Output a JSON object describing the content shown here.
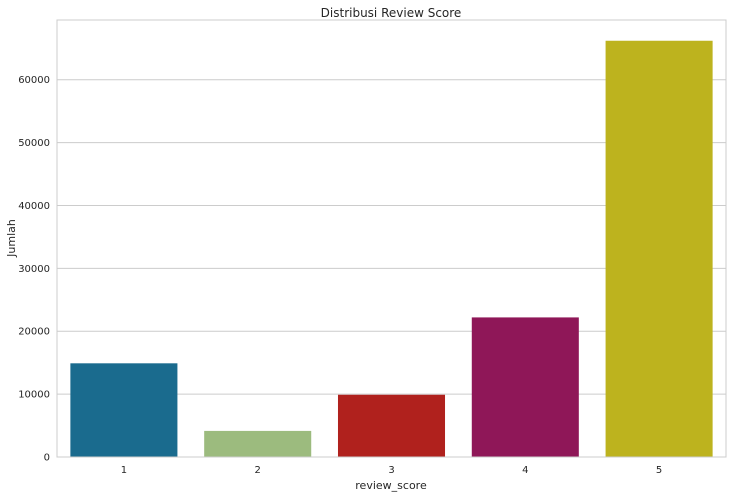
{
  "chart_data": {
    "type": "bar",
    "title": "Distribusi Review Score",
    "xlabel": "review_score",
    "ylabel": "Jumlah",
    "categories": [
      "1",
      "2",
      "3",
      "4",
      "5"
    ],
    "values": [
      14900,
      4150,
      9900,
      22200,
      66200
    ],
    "colors": [
      "#1a6b8e",
      "#9cbb7e",
      "#b0211d",
      "#8f1758",
      "#bdb31e"
    ],
    "yticks": [
      0,
      10000,
      20000,
      30000,
      40000,
      50000,
      60000
    ],
    "ytick_labels": [
      "0",
      "10000",
      "20000",
      "30000",
      "40000",
      "50000",
      "60000"
    ],
    "ylim": [
      0,
      69500
    ],
    "grid": true
  }
}
